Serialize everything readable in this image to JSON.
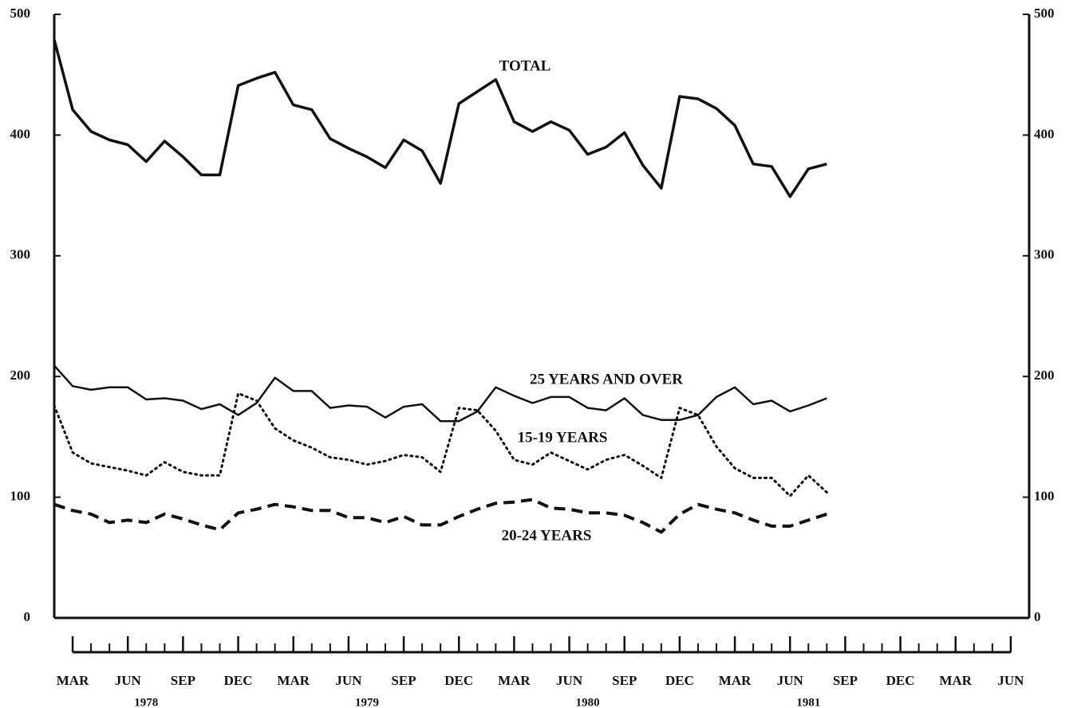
{
  "chart_data": {
    "type": "line",
    "x": [
      "1978-02",
      "1978-03",
      "1978-04",
      "1978-05",
      "1978-06",
      "1978-07",
      "1978-08",
      "1978-09",
      "1978-10",
      "1978-11",
      "1978-12",
      "1979-01",
      "1979-02",
      "1979-03",
      "1979-04",
      "1979-05",
      "1979-06",
      "1979-07",
      "1979-08",
      "1979-09",
      "1979-10",
      "1979-11",
      "1979-12",
      "1980-01",
      "1980-02",
      "1980-03",
      "1980-04",
      "1980-05",
      "1980-06",
      "1980-07",
      "1980-08",
      "1980-09",
      "1980-10",
      "1980-11",
      "1980-12",
      "1981-01",
      "1981-02",
      "1981-03",
      "1981-04",
      "1981-05",
      "1981-06",
      "1981-07",
      "1981-08"
    ],
    "series": [
      {
        "name": "TOTAL",
        "color": "#111111",
        "line_style": "solid",
        "width": 3.5,
        "values": [
          479,
          421,
          403,
          396,
          392,
          378,
          395,
          382,
          367,
          367,
          441,
          447,
          452,
          425,
          421,
          397,
          389,
          382,
          373,
          396,
          387,
          360,
          426,
          436,
          446,
          411,
          403,
          411,
          404,
          384,
          390,
          402,
          375,
          356,
          432,
          430,
          422,
          408,
          376,
          374,
          349,
          372,
          376
        ]
      },
      {
        "name": "25 YEARS AND OVER",
        "color": "#111111",
        "line_style": "solid",
        "width": 2.5,
        "values": [
          209,
          192,
          189,
          191,
          191,
          181,
          182,
          180,
          173,
          177,
          168,
          178,
          199,
          188,
          188,
          174,
          176,
          175,
          166,
          175,
          177,
          163,
          163,
          171,
          191,
          184,
          178,
          183,
          183,
          174,
          172,
          182,
          168,
          164,
          164,
          168,
          183,
          191,
          177,
          180,
          171,
          176,
          182
        ]
      },
      {
        "name": "15-19 YEARS",
        "color": "#111111",
        "line_style": "dotted",
        "width": 3,
        "values": [
          176,
          137,
          128,
          125,
          122,
          118,
          129,
          121,
          118,
          118,
          186,
          180,
          157,
          147,
          141,
          133,
          131,
          127,
          130,
          135,
          133,
          121,
          174,
          172,
          155,
          131,
          127,
          137,
          130,
          123,
          131,
          135,
          126,
          116,
          174,
          168,
          142,
          124,
          116,
          116,
          101,
          118,
          104
        ]
      },
      {
        "name": "20-24 YEARS",
        "color": "#111111",
        "line_style": "dashed",
        "width": 4,
        "values": [
          94,
          89,
          86,
          79,
          81,
          79,
          86,
          82,
          77,
          73,
          87,
          90,
          94,
          92,
          89,
          89,
          83,
          83,
          79,
          84,
          77,
          77,
          84,
          90,
          95,
          96,
          98,
          91,
          90,
          87,
          87,
          85,
          79,
          71,
          86,
          94,
          90,
          87,
          81,
          76,
          76,
          81,
          86
        ]
      }
    ],
    "xlim": [
      "1978-02",
      "1982-07"
    ],
    "xticks": [
      {
        "value": "1978-03",
        "label": "MAR"
      },
      {
        "value": "1978-06",
        "label": "JUN"
      },
      {
        "value": "1978-09",
        "label": "SEP"
      },
      {
        "value": "1978-12",
        "label": "DEC"
      },
      {
        "value": "1979-03",
        "label": "MAR"
      },
      {
        "value": "1979-06",
        "label": "JUN"
      },
      {
        "value": "1979-09",
        "label": "SEP"
      },
      {
        "value": "1979-12",
        "label": "DEC"
      },
      {
        "value": "1980-03",
        "label": "MAR"
      },
      {
        "value": "1980-06",
        "label": "JUN"
      },
      {
        "value": "1980-09",
        "label": "SEP"
      },
      {
        "value": "1980-12",
        "label": "DEC"
      },
      {
        "value": "1981-03",
        "label": "MAR"
      },
      {
        "value": "1981-06",
        "label": "JUN"
      },
      {
        "value": "1981-09",
        "label": "SEP"
      },
      {
        "value": "1981-12",
        "label": "DEC"
      },
      {
        "value": "1982-03",
        "label": "MAR"
      },
      {
        "value": "1982-06",
        "label": "JUN"
      }
    ],
    "year_labels": [
      {
        "value": "1978-07",
        "label": "1978"
      },
      {
        "value": "1979-07",
        "label": "1979"
      },
      {
        "value": "1980-07",
        "label": "1980"
      },
      {
        "value": "1981-07",
        "label": "1981"
      }
    ],
    "ylim": [
      0,
      500
    ],
    "yticks": [
      0,
      100,
      200,
      300,
      400,
      500
    ]
  }
}
